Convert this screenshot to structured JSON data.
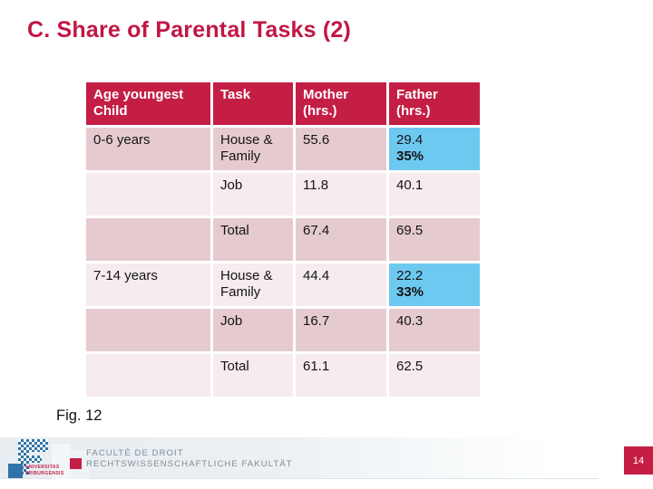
{
  "slide": {
    "title": "C. Share of Parental Tasks (2)",
    "figure_caption": "Fig. 12",
    "page_number": "14"
  },
  "table": {
    "headers": [
      "Age youngest Child",
      "Task",
      "Mother (hrs.)",
      "Father (hrs.)"
    ],
    "rows": [
      {
        "age": "0-6 years",
        "task": "House & Family",
        "mother": "55.6",
        "father": "29.4",
        "father_pct": "35%"
      },
      {
        "age": "",
        "task": "Job",
        "mother": "11.8",
        "father": "40.1",
        "father_pct": ""
      },
      {
        "age": "",
        "task": "Total",
        "mother": "67.4",
        "father": "69.5",
        "father_pct": ""
      },
      {
        "age": "7-14 years",
        "task": "House & Family",
        "mother": "44.4",
        "father": "22.2",
        "father_pct": "33%"
      },
      {
        "age": "",
        "task": "Job",
        "mother": "16.7",
        "father": "40.3",
        "father_pct": ""
      },
      {
        "age": "",
        "task": "Total",
        "mother": "61.1",
        "father": "62.5",
        "father_pct": ""
      }
    ]
  },
  "footer": {
    "university_line1": "UNIVERSITAS",
    "university_line2": "FRIBURGENSIS",
    "faculty_line1": "FACULTÉ DE DROIT",
    "faculty_line2": "RECHTSWISSENSCHAFTLICHE FAKULTÄT"
  },
  "colors": {
    "accent_red": "#c41e45",
    "title_red": "#c01744",
    "row_band_dark": "#e5cbd0",
    "row_band_light": "#f6ebed",
    "highlight_blue": "#6ec9f1",
    "logo_blue": "#2e74a8",
    "faculty_gray": "#828b94"
  },
  "chart_data": {
    "type": "table",
    "title": "Fig. 12 — Share of Parental Tasks",
    "columns": [
      "Age youngest Child",
      "Task",
      "Mother (hrs.)",
      "Father (hrs.)"
    ],
    "rows": [
      [
        "0-6 years",
        "House & Family",
        55.6,
        "29.4 (35%)"
      ],
      [
        "",
        "Job",
        11.8,
        40.1
      ],
      [
        "",
        "Total",
        67.4,
        69.5
      ],
      [
        "7-14 years",
        "House & Family",
        44.4,
        "22.2 (33%)"
      ],
      [
        "",
        "Job",
        16.7,
        40.3
      ],
      [
        "",
        "Total",
        61.1,
        62.5
      ]
    ]
  }
}
